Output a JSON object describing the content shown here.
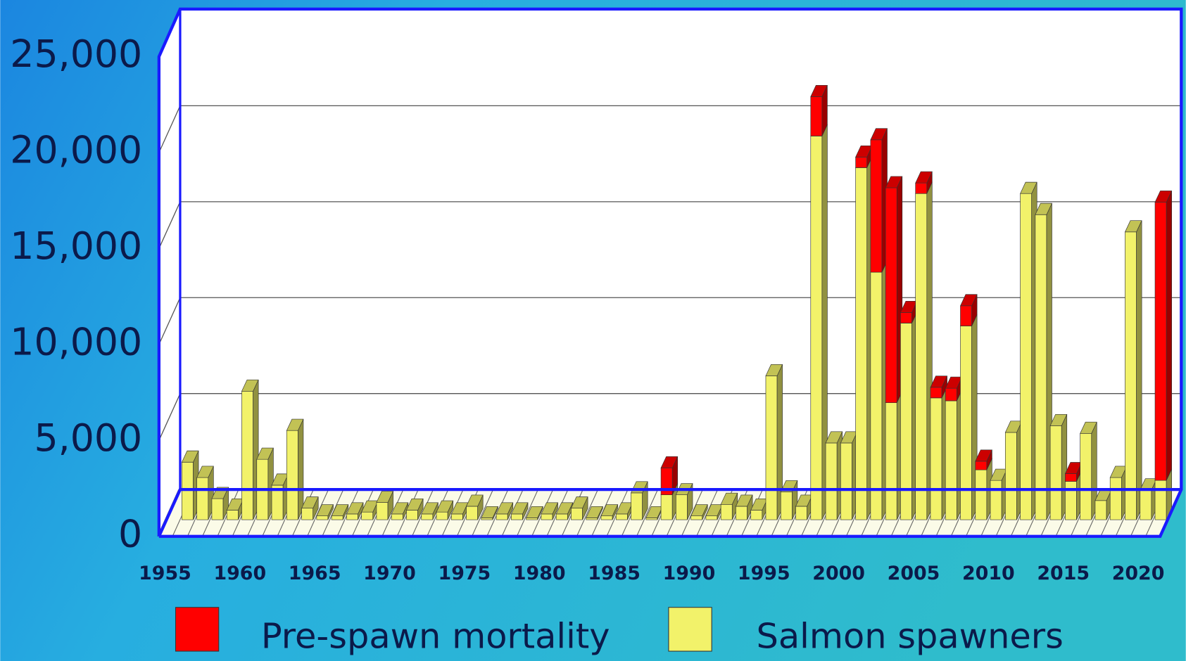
{
  "chart_data": {
    "type": "stacked-bar-3d",
    "categories": [
      "1955",
      null,
      null,
      null,
      null,
      "1960",
      null,
      null,
      null,
      null,
      "1965",
      null,
      null,
      null,
      null,
      "1970",
      null,
      null,
      null,
      null,
      "1975",
      null,
      null,
      null,
      null,
      "1980",
      null,
      null,
      null,
      null,
      "1985",
      null,
      null,
      null,
      null,
      "1990",
      null,
      null,
      null,
      null,
      "1995",
      null,
      null,
      null,
      null,
      "2000",
      null,
      null,
      null,
      null,
      "2005",
      null,
      null,
      null,
      null,
      "2010",
      null,
      null,
      null,
      null,
      "2015",
      null,
      null,
      null,
      null,
      "2020",
      null
    ],
    "series": [
      {
        "name": "Pre-spawn mortality",
        "color": "#ff0000",
        "values": [
          null,
          0,
          0,
          0,
          0,
          0,
          0,
          0,
          0,
          0,
          0,
          0,
          0,
          0,
          0,
          0,
          0,
          0,
          0,
          0,
          0,
          0,
          0,
          0,
          0,
          0,
          0,
          0,
          0,
          0,
          0,
          0,
          0,
          1400,
          0,
          0,
          0,
          0,
          0,
          0,
          0,
          0,
          0,
          2050,
          0,
          0,
          550,
          6900,
          11200,
          550,
          550,
          550,
          650,
          1050,
          450,
          0,
          0,
          0,
          0,
          0,
          400,
          0,
          0,
          0,
          0,
          0,
          14500
        ]
      },
      {
        "name": "Salmon spawners",
        "color": "#f2f26a",
        "values": [
          null,
          3000,
          2200,
          1100,
          500,
          6700,
          3150,
          1800,
          4650,
          600,
          200,
          200,
          300,
          400,
          900,
          300,
          500,
          300,
          400,
          300,
          700,
          100,
          300,
          300,
          100,
          300,
          300,
          600,
          100,
          200,
          300,
          1400,
          100,
          1300,
          1300,
          200,
          200,
          800,
          700,
          500,
          7500,
          1450,
          700,
          20000,
          4000,
          4000,
          18350,
          12900,
          6100,
          10250,
          17000,
          6350,
          6200,
          10100,
          2600,
          2050,
          4550,
          17000,
          15900,
          4900,
          2000,
          4500,
          1000,
          2200,
          15000,
          1550,
          2050
        ]
      }
    ],
    "ylim": [
      0,
      25000
    ],
    "yticks": [
      0,
      {
        "value": 5000,
        "label": "5,000"
      },
      {
        "value": 10000,
        "label": "10,000"
      },
      {
        "value": 15000,
        "label": "15,000"
      },
      {
        "value": 20000,
        "label": "20,000"
      },
      {
        "value": 25000,
        "label": "25,000"
      }
    ],
    "grid": true
  }
}
